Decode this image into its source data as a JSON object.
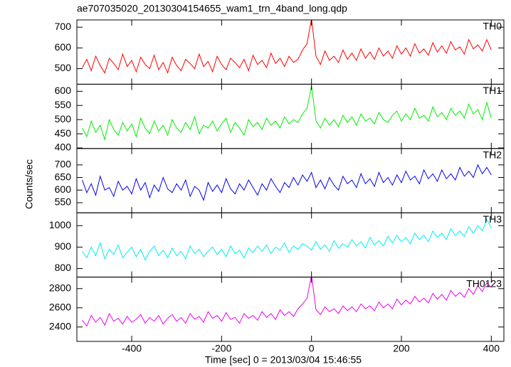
{
  "chart_data": {
    "type": "line",
    "title": "ae707035020_20130304154655_wam1_trn_4band_long.qdp",
    "xlabel": "Time [sec] 0 = 2013/03/04 15:46:55",
    "ylabel": "Counts/sec",
    "xlim": [
      -522,
      428
    ],
    "xticks": [
      -400,
      -200,
      0,
      200,
      400
    ],
    "x": [
      -510,
      -500,
      -490,
      -480,
      -470,
      -460,
      -450,
      -440,
      -430,
      -420,
      -410,
      -400,
      -390,
      -380,
      -370,
      -360,
      -350,
      -340,
      -330,
      -320,
      -310,
      -300,
      -290,
      -280,
      -270,
      -260,
      -250,
      -240,
      -230,
      -220,
      -210,
      -200,
      -190,
      -180,
      -170,
      -160,
      -150,
      -140,
      -130,
      -120,
      -110,
      -100,
      -90,
      -80,
      -70,
      -60,
      -50,
      -40,
      -30,
      -20,
      -10,
      0,
      10,
      20,
      30,
      40,
      50,
      60,
      70,
      80,
      90,
      100,
      110,
      120,
      130,
      140,
      150,
      160,
      170,
      180,
      190,
      200,
      210,
      220,
      230,
      240,
      250,
      260,
      270,
      280,
      290,
      300,
      310,
      320,
      330,
      340,
      350,
      360,
      370,
      380,
      390,
      400
    ],
    "series": [
      {
        "name": "TH0",
        "color": "#ff0000",
        "ylim": [
          425,
          735
        ],
        "yticks": [
          500,
          600,
          700
        ],
        "values": [
          505,
          545,
          490,
          560,
          515,
          480,
          550,
          525,
          495,
          570,
          510,
          540,
          485,
          555,
          520,
          500,
          565,
          495,
          530,
          480,
          555,
          515,
          490,
          545,
          525,
          500,
          570,
          510,
          535,
          485,
          560,
          520,
          495,
          550,
          530,
          505,
          545,
          490,
          565,
          520,
          540,
          505,
          575,
          525,
          550,
          510,
          560,
          530,
          545,
          590,
          620,
          740,
          560,
          520,
          585,
          540,
          560,
          530,
          590,
          545,
          575,
          540,
          595,
          550,
          580,
          545,
          600,
          560,
          585,
          550,
          610,
          570,
          600,
          560,
          620,
          575,
          595,
          565,
          625,
          580,
          610,
          575,
          630,
          590,
          605,
          570,
          640,
          595,
          615,
          585,
          640,
          590
        ]
      },
      {
        "name": "TH1",
        "color": "#00ee00",
        "ylim": [
          398,
          625
        ],
        "yticks": [
          400,
          450,
          500,
          550,
          600
        ],
        "values": [
          470,
          440,
          495,
          455,
          480,
          430,
          500,
          465,
          445,
          490,
          460,
          485,
          440,
          505,
          470,
          450,
          495,
          460,
          480,
          445,
          500,
          470,
          455,
          490,
          465,
          510,
          450,
          480,
          470,
          495,
          460,
          485,
          505,
          455,
          490,
          470,
          445,
          500,
          475,
          490,
          465,
          505,
          480,
          495,
          470,
          510,
          485,
          500,
          490,
          520,
          540,
          620,
          495,
          470,
          505,
          480,
          500,
          475,
          515,
          490,
          510,
          480,
          520,
          495,
          505,
          485,
          525,
          500,
          490,
          515,
          530,
          495,
          520,
          500,
          540,
          505,
          515,
          495,
          545,
          510,
          525,
          500,
          540,
          515,
          530,
          505,
          555,
          520,
          535,
          500,
          560,
          505
        ]
      },
      {
        "name": "TH2",
        "color": "#0000ee",
        "ylim": [
          510,
          765
        ],
        "yticks": [
          550,
          600,
          650,
          700
        ],
        "values": [
          640,
          590,
          625,
          580,
          655,
          600,
          610,
          575,
          635,
          600,
          615,
          585,
          645,
          600,
          630,
          570,
          620,
          595,
          650,
          605,
          590,
          625,
          600,
          640,
          575,
          615,
          600,
          560,
          630,
          595,
          620,
          590,
          645,
          605,
          585,
          625,
          600,
          640,
          610,
          580,
          625,
          600,
          645,
          615,
          590,
          630,
          610,
          650,
          620,
          660,
          635,
          670,
          610,
          640,
          605,
          650,
          620,
          600,
          655,
          625,
          640,
          610,
          665,
          625,
          645,
          615,
          670,
          630,
          650,
          620,
          660,
          630,
          675,
          640,
          655,
          625,
          680,
          645,
          665,
          635,
          680,
          645,
          665,
          640,
          690,
          655,
          675,
          650,
          700,
          665,
          690,
          660
        ]
      },
      {
        "name": "TH3",
        "color": "#00eeee",
        "ylim": [
          760,
          1060
        ],
        "yticks": [
          800,
          900,
          1000
        ],
        "values": [
          880,
          850,
          900,
          860,
          920,
          845,
          890,
          865,
          910,
          850,
          875,
          900,
          855,
          890,
          840,
          880,
          905,
          860,
          885,
          850,
          895,
          860,
          880,
          845,
          905,
          870,
          890,
          855,
          880,
          900,
          865,
          890,
          855,
          905,
          870,
          885,
          850,
          895,
          875,
          905,
          880,
          910,
          870,
          900,
          885,
          920,
          875,
          905,
          890,
          915,
          905,
          885,
          925,
          890,
          910,
          880,
          930,
          895,
          915,
          900,
          935,
          905,
          925,
          895,
          945,
          910,
          930,
          905,
          950,
          920,
          955,
          925,
          945,
          915,
          965,
          935,
          955,
          925,
          975,
          945,
          965,
          935,
          985,
          955,
          975,
          950,
          995,
          965,
          1000,
          975,
          1030,
          990
        ]
      },
      {
        "name": "TH0123",
        "color": "#ee00ee",
        "ylim": [
          2250,
          2920
        ],
        "yticks": [
          2400,
          2600,
          2800
        ],
        "values": [
          2470,
          2410,
          2520,
          2450,
          2500,
          2420,
          2540,
          2460,
          2490,
          2430,
          2510,
          2450,
          2480,
          2530,
          2440,
          2500,
          2460,
          2520,
          2430,
          2490,
          2530,
          2460,
          2500,
          2440,
          2540,
          2480,
          2510,
          2450,
          2560,
          2490,
          2520,
          2460,
          2550,
          2480,
          2500,
          2440,
          2540,
          2490,
          2520,
          2470,
          2560,
          2500,
          2540,
          2480,
          2580,
          2520,
          2560,
          2510,
          2590,
          2640,
          2700,
          2940,
          2580,
          2530,
          2610,
          2560,
          2590,
          2540,
          2620,
          2570,
          2610,
          2560,
          2640,
          2590,
          2620,
          2570,
          2660,
          2600,
          2640,
          2590,
          2690,
          2630,
          2680,
          2640,
          2720,
          2660,
          2700,
          2650,
          2750,
          2690,
          2740,
          2680,
          2780,
          2720,
          2760,
          2710,
          2800,
          2740,
          2830,
          2770,
          2860,
          2810
        ]
      }
    ]
  }
}
